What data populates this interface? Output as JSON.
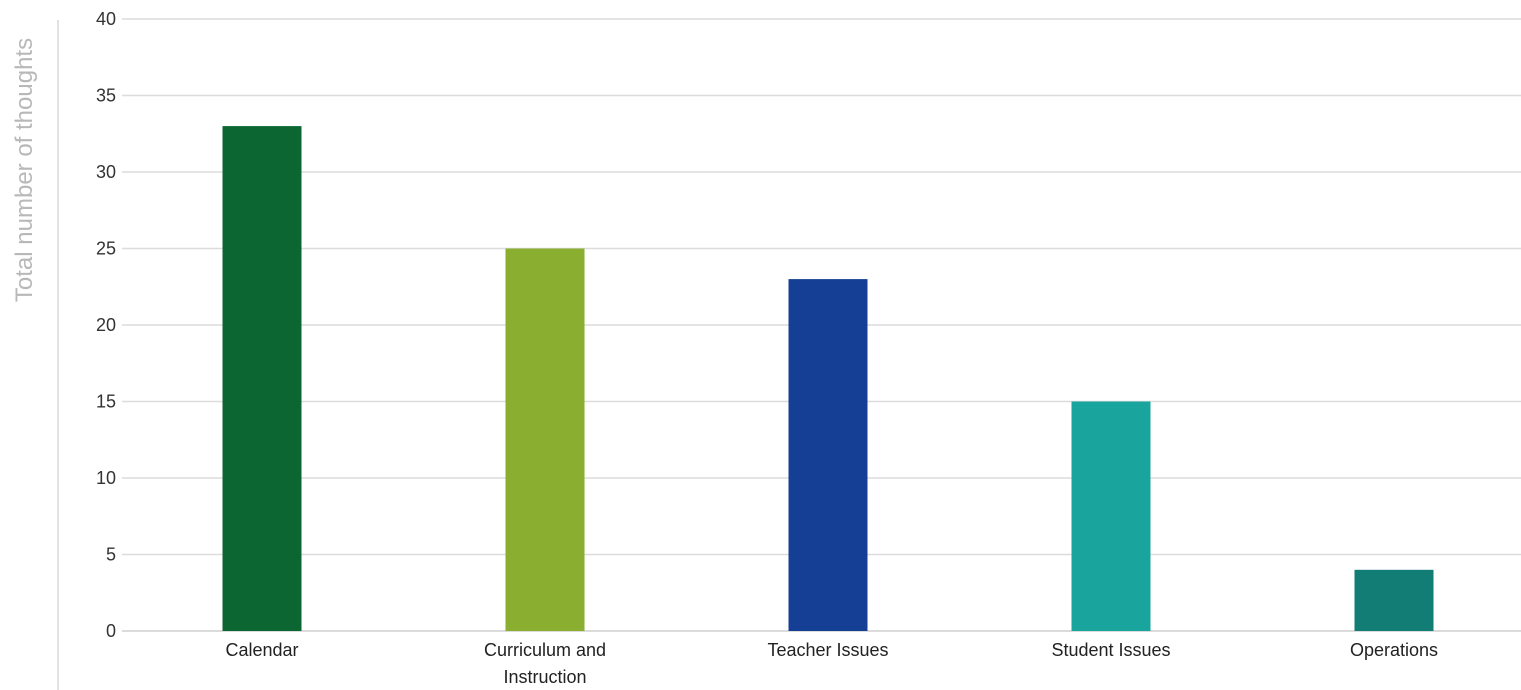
{
  "chart_data": {
    "type": "bar",
    "title": "",
    "xlabel": "",
    "ylabel": "Total number of thoughts",
    "ylim": [
      0,
      40
    ],
    "yticks": [
      0,
      5,
      10,
      15,
      20,
      25,
      30,
      35,
      40
    ],
    "grid": true,
    "categories": [
      [
        "Calendar"
      ],
      [
        "Curriculum and",
        "Instruction"
      ],
      [
        "Teacher Issues"
      ],
      [
        "Student Issues"
      ],
      [
        "Operations"
      ]
    ],
    "values": [
      33,
      25,
      23,
      15,
      4
    ],
    "colors": [
      "#0b6631",
      "#8aae2f",
      "#143f95",
      "#19a59e",
      "#127d75"
    ]
  }
}
